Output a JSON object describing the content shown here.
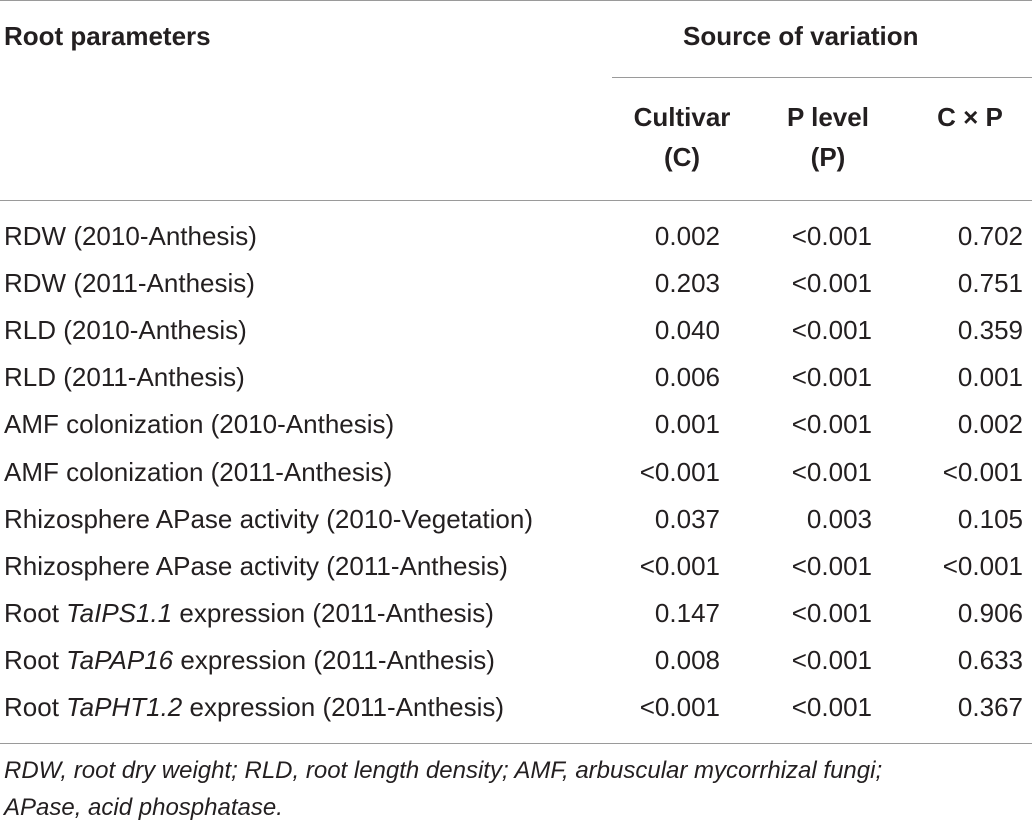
{
  "header": {
    "root_parameters": "Root parameters",
    "source_of_variation": "Source of variation",
    "cultivar_line1": "Cultivar",
    "cultivar_line2": "(C)",
    "plevel_line1": "P level",
    "plevel_line2": "(P)",
    "interaction": "C × P"
  },
  "rows": [
    {
      "pre": "RDW (2010-Anthesis)",
      "ital": "",
      "post": "",
      "cultivar": "0.002",
      "p_level": "<0.001",
      "cxp": "0.702"
    },
    {
      "pre": "RDW (2011-Anthesis)",
      "ital": "",
      "post": "",
      "cultivar": "0.203",
      "p_level": "<0.001",
      "cxp": "0.751"
    },
    {
      "pre": "RLD (2010-Anthesis)",
      "ital": "",
      "post": "",
      "cultivar": "0.040",
      "p_level": "<0.001",
      "cxp": "0.359"
    },
    {
      "pre": "RLD (2011-Anthesis)",
      "ital": "",
      "post": "",
      "cultivar": "0.006",
      "p_level": "<0.001",
      "cxp": "0.001"
    },
    {
      "pre": "AMF colonization (2010-Anthesis)",
      "ital": "",
      "post": "",
      "cultivar": "0.001",
      "p_level": "<0.001",
      "cxp": "0.002"
    },
    {
      "pre": "AMF colonization (2011-Anthesis)",
      "ital": "",
      "post": "",
      "cultivar": "<0.001",
      "p_level": "<0.001",
      "cxp": "<0.001"
    },
    {
      "pre": "Rhizosphere APase activity (2010-Vegetation)",
      "ital": "",
      "post": "",
      "cultivar": "0.037",
      "p_level": "0.003",
      "cxp": "0.105"
    },
    {
      "pre": "Rhizosphere APase activity (2011-Anthesis)",
      "ital": "",
      "post": "",
      "cultivar": "<0.001",
      "p_level": "<0.001",
      "cxp": "<0.001"
    },
    {
      "pre": "Root ",
      "ital": "TaIPS1.1",
      "post": " expression (2011-Anthesis)",
      "cultivar": "0.147",
      "p_level": "<0.001",
      "cxp": "0.906"
    },
    {
      "pre": "Root ",
      "ital": "TaPAP16",
      "post": " expression (2011-Anthesis)",
      "cultivar": "0.008",
      "p_level": "<0.001",
      "cxp": "0.633"
    },
    {
      "pre": "Root ",
      "ital": "TaPHT1.2",
      "post": " expression (2011-Anthesis)",
      "cultivar": "<0.001",
      "p_level": "<0.001",
      "cxp": "0.367"
    }
  ],
  "footnote": {
    "line1": "RDW, root dry weight; RLD, root length density; AMF, arbuscular mycorrhizal fungi;",
    "line2": "APase, acid phosphatase."
  }
}
